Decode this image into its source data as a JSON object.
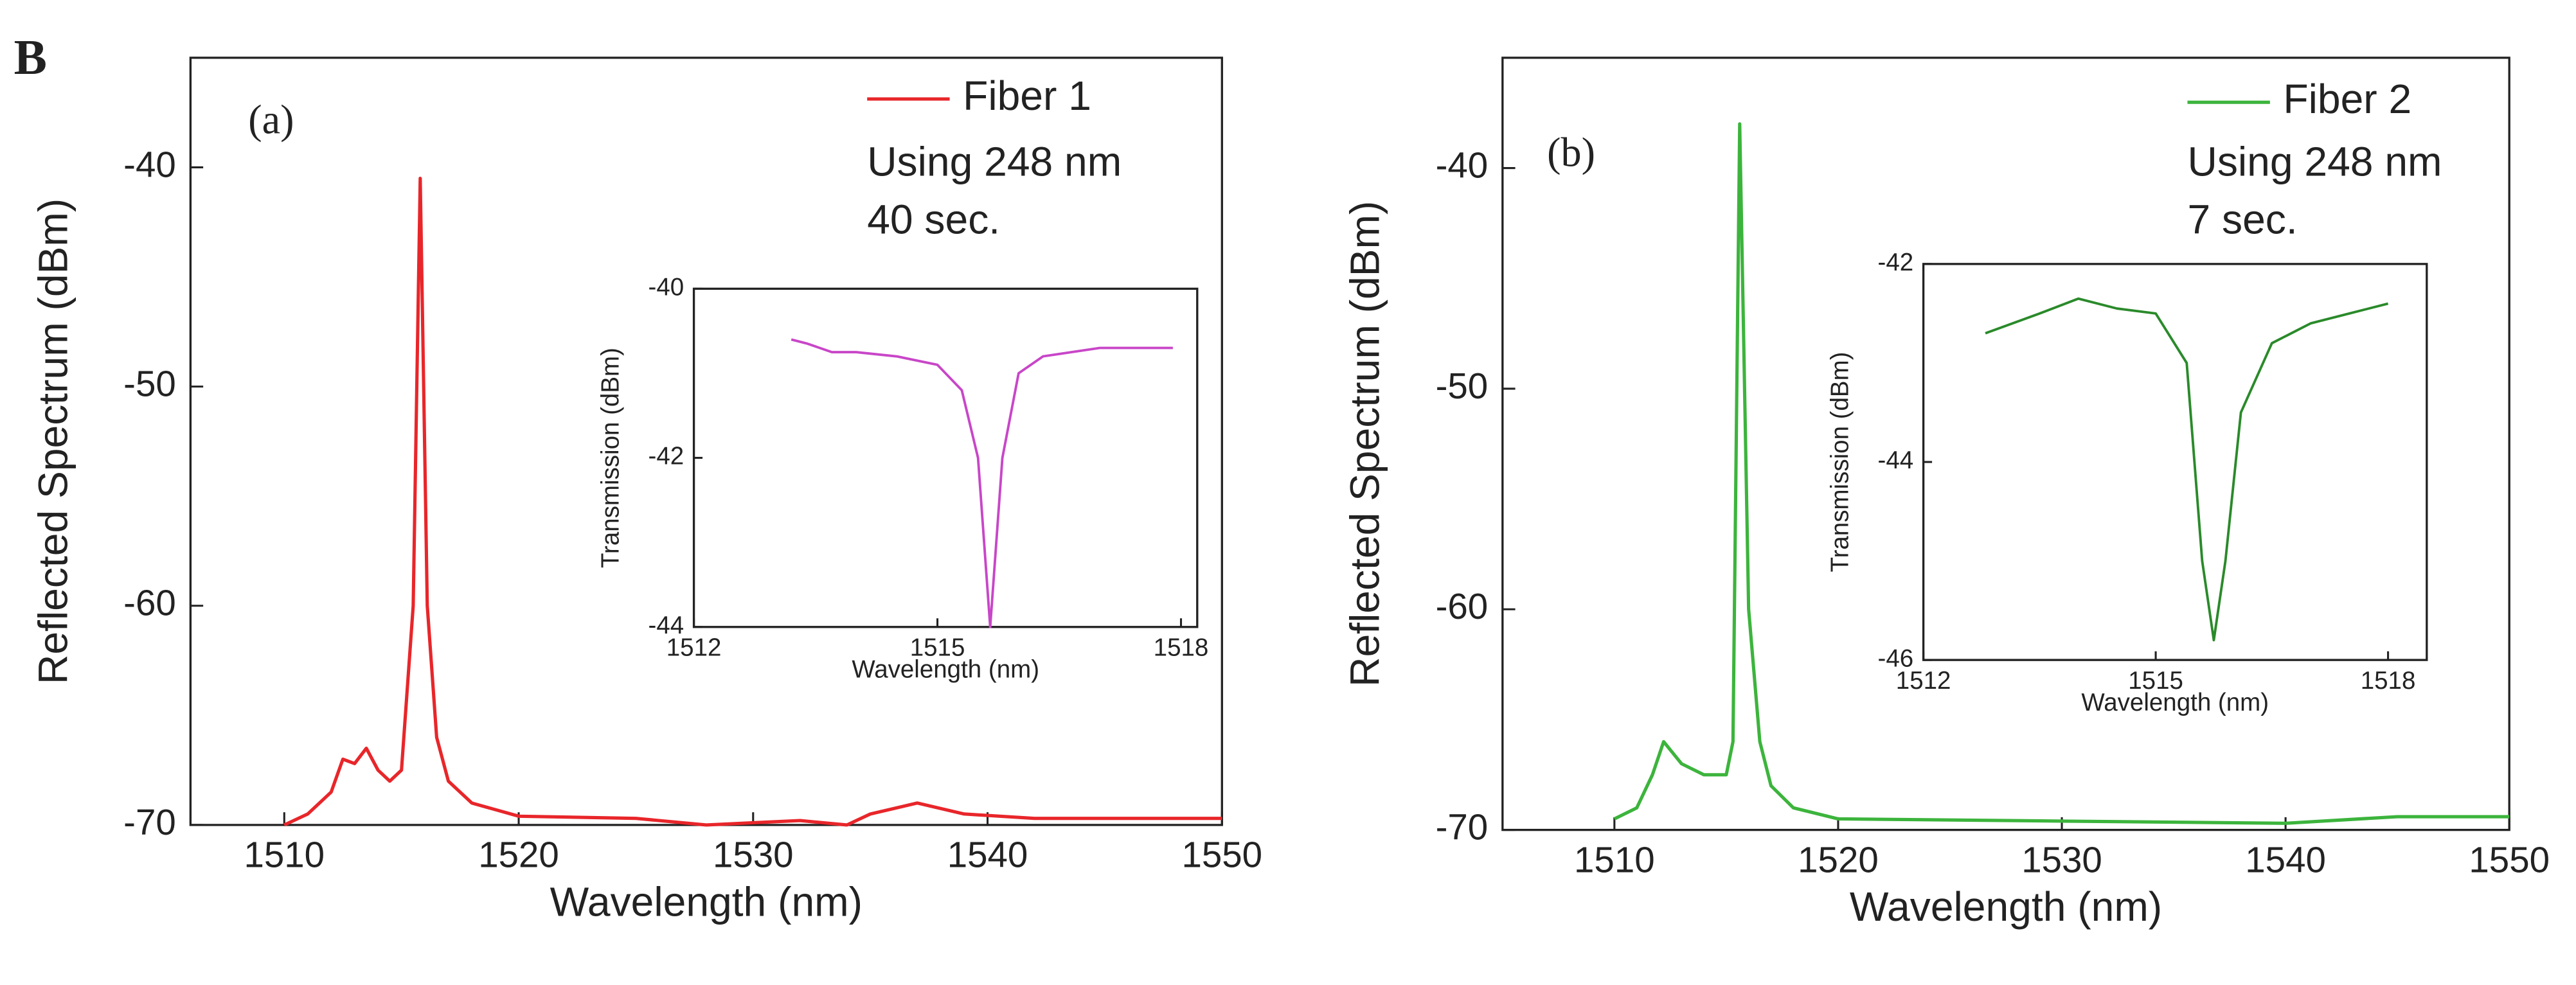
{
  "figure_label": "B",
  "chart_data": [
    {
      "type": "line",
      "annotations": [
        "(a)",
        "Using 248 nm",
        "40 sec."
      ],
      "xlabel": "Wavelength (nm)",
      "ylabel": "Reflected Spectrum (dBm)",
      "xlim": [
        1506,
        1550
      ],
      "xticks": [
        1510,
        1520,
        1530,
        1540,
        1550
      ],
      "ylim": [
        -70,
        -35
      ],
      "yticks": [
        -40,
        -50,
        -60,
        -70
      ],
      "x": [
        1510,
        1511,
        1512,
        1512.5,
        1513,
        1513.5,
        1514,
        1514.5,
        1515,
        1515.5,
        1515.8,
        1516.1,
        1516.5,
        1517,
        1518,
        1520,
        1525,
        1528,
        1532,
        1534,
        1535,
        1537,
        1539,
        1542,
        1550
      ],
      "series": [
        {
          "name": "Fiber 1",
          "color": "#e8262a",
          "values": [
            -70,
            -69.5,
            -68.5,
            -67,
            -67.2,
            -66.5,
            -67.5,
            -68,
            -67.5,
            -60,
            -40.5,
            -60,
            -66,
            -68,
            -69,
            -69.6,
            -69.7,
            -70,
            -69.8,
            -70,
            -69.5,
            -69,
            -69.5,
            -69.7,
            -69.7
          ]
        }
      ]
    },
    {
      "type": "line",
      "xlabel": "Wavelength (nm)",
      "ylabel": "Transmission (dBm)",
      "xlim": [
        1512,
        1518.2
      ],
      "xticks": [
        1512,
        1515,
        1518
      ],
      "ylim": [
        -44,
        -40
      ],
      "yticks": [
        -40,
        -42,
        -44
      ],
      "x": [
        1513.2,
        1513.4,
        1513.7,
        1514,
        1514.5,
        1515,
        1515.3,
        1515.5,
        1515.65,
        1515.8,
        1516,
        1516.3,
        1517,
        1517.9
      ],
      "series": [
        {
          "name": null,
          "color": "#c846c8",
          "values": [
            -40.6,
            -40.65,
            -40.75,
            -40.75,
            -40.8,
            -40.9,
            -41.2,
            -42,
            -44,
            -42,
            -41,
            -40.8,
            -40.7,
            -40.7
          ]
        }
      ]
    },
    {
      "type": "line",
      "annotations": [
        "(b)",
        "Using 248 nm",
        "7 sec."
      ],
      "xlabel": "Wavelength (nm)",
      "ylabel": "Reflected Spectrum (dBm)",
      "xlim": [
        1505,
        1550
      ],
      "xticks": [
        1510,
        1520,
        1530,
        1540,
        1550
      ],
      "ylim": [
        -70,
        -35
      ],
      "yticks": [
        -40,
        -50,
        -60,
        -70
      ],
      "x": [
        1510,
        1511,
        1511.7,
        1512.2,
        1513,
        1514,
        1515,
        1515.3,
        1515.6,
        1516,
        1516.5,
        1517,
        1518,
        1520,
        1530,
        1540,
        1545,
        1550
      ],
      "series": [
        {
          "name": "Fiber 2",
          "color": "#3cb43c",
          "values": [
            -69.5,
            -69,
            -67.5,
            -66,
            -67,
            -67.5,
            -67.5,
            -66,
            -38,
            -60,
            -66,
            -68,
            -69,
            -69.5,
            -69.6,
            -69.7,
            -69.4,
            -69.4
          ]
        }
      ]
    },
    {
      "type": "line",
      "xlabel": "Wavelength (nm)",
      "ylabel": "Transmission (dBm)",
      "xlim": [
        1512,
        1518.5
      ],
      "xticks": [
        1512,
        1515,
        1518
      ],
      "ylim": [
        -46,
        -42
      ],
      "yticks": [
        -42,
        -44,
        -46
      ],
      "x": [
        1512.8,
        1513.5,
        1514,
        1514.5,
        1515,
        1515.4,
        1515.6,
        1515.75,
        1515.9,
        1516.1,
        1516.5,
        1517,
        1517.5,
        1518
      ],
      "series": [
        {
          "name": null,
          "color": "#2a8a2a",
          "values": [
            -42.7,
            -42.5,
            -42.35,
            -42.45,
            -42.5,
            -43,
            -45,
            -45.8,
            -45,
            -43.5,
            -42.8,
            -42.6,
            -42.5,
            -42.4
          ]
        }
      ]
    }
  ]
}
